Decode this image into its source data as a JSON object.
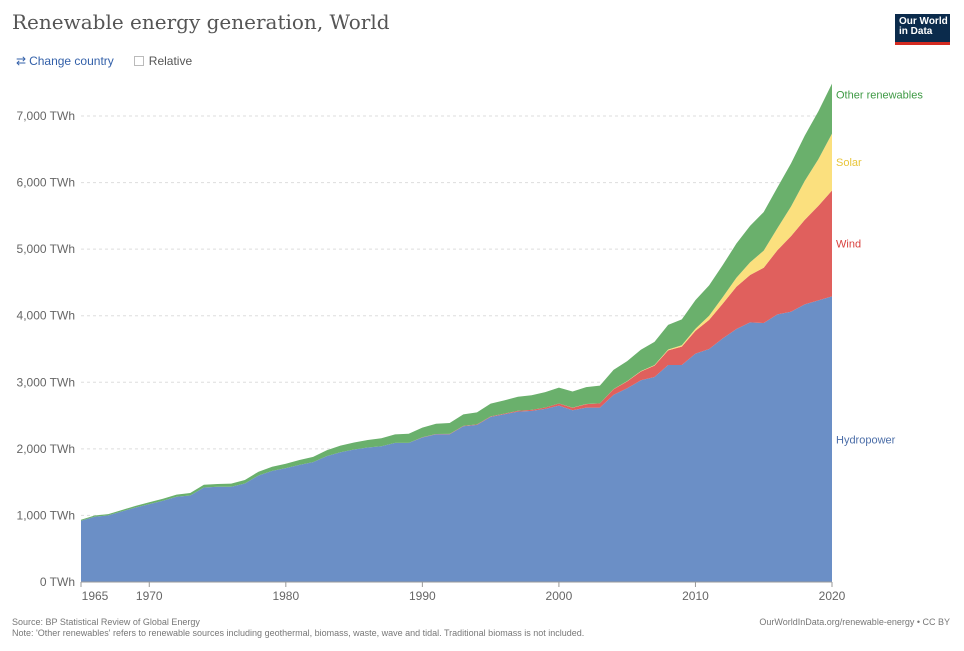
{
  "header": {
    "title": "Renewable energy generation, World",
    "logo_line1": "Our World",
    "logo_line2": "in Data"
  },
  "controls": {
    "change_country_icon": "swap-arrows-icon",
    "change_country_label": "Change country",
    "relative_label": "Relative",
    "relative_checked": false
  },
  "footer": {
    "source": "Source: BP Statistical Review of Global Energy",
    "note": "Note: 'Other renewables' refers to renewable sources including geothermal, biomass, waste, wave and tidal. Traditional biomass is not included.",
    "url": "OurWorldInData.org/renewable-energy • CC BY"
  },
  "colors": {
    "hydropower": "#6b8fc6",
    "wind": "#e0605d",
    "solar": "#fbe07e",
    "other": "#6ab06c",
    "hydropower_label": "#4c6ea8",
    "wind_label": "#d9423f",
    "solar_label": "#e8c53a",
    "other_label": "#3f9a45"
  },
  "chart_data": {
    "type": "area",
    "stacked": true,
    "x": [
      1965,
      1966,
      1967,
      1968,
      1969,
      1970,
      1971,
      1972,
      1973,
      1974,
      1975,
      1976,
      1977,
      1978,
      1979,
      1980,
      1981,
      1982,
      1983,
      1984,
      1985,
      1986,
      1987,
      1988,
      1989,
      1990,
      1991,
      1992,
      1993,
      1994,
      1995,
      1996,
      1997,
      1998,
      1999,
      2000,
      2001,
      2002,
      2003,
      2004,
      2005,
      2006,
      2007,
      2008,
      2009,
      2010,
      2011,
      2012,
      2013,
      2014,
      2015,
      2016,
      2017,
      2018,
      2019,
      2020
    ],
    "series": [
      {
        "name": "Hydropower",
        "values": [
          920,
          980,
          1000,
          1060,
          1120,
          1170,
          1220,
          1280,
          1300,
          1420,
          1430,
          1430,
          1480,
          1600,
          1670,
          1710,
          1760,
          1800,
          1890,
          1950,
          1990,
          2020,
          2040,
          2090,
          2090,
          2170,
          2220,
          2220,
          2340,
          2360,
          2480,
          2520,
          2560,
          2570,
          2600,
          2650,
          2580,
          2620,
          2620,
          2810,
          2910,
          3030,
          3080,
          3260,
          3260,
          3430,
          3500,
          3660,
          3800,
          3900,
          3890,
          4020,
          4060,
          4170,
          4230,
          4290
        ]
      },
      {
        "name": "Wind",
        "values": [
          0,
          0,
          0,
          0,
          0,
          0,
          0,
          0,
          0,
          0,
          0,
          0,
          0,
          0,
          0,
          0,
          0,
          0,
          0,
          0,
          0,
          0,
          0,
          0,
          0,
          4,
          4,
          5,
          6,
          7,
          8,
          9,
          12,
          16,
          22,
          31,
          38,
          52,
          63,
          85,
          104,
          132,
          170,
          220,
          276,
          342,
          437,
          521,
          636,
          712,
          831,
          964,
          1136,
          1270,
          1420,
          1590
        ]
      },
      {
        "name": "Solar",
        "values": [
          0,
          0,
          0,
          0,
          0,
          0,
          0,
          0,
          0,
          0,
          0,
          0,
          0,
          0,
          0,
          0,
          0,
          0,
          0,
          0,
          0,
          0,
          0,
          0,
          0,
          0,
          0,
          0,
          0,
          0,
          0,
          0,
          0,
          0,
          0,
          1,
          1,
          1,
          1,
          2,
          4,
          5,
          7,
          12,
          20,
          32,
          63,
          98,
          134,
          190,
          256,
          330,
          444,
          584,
          700,
          856
        ]
      },
      {
        "name": "Other renewables",
        "values": [
          15,
          18,
          20,
          22,
          24,
          27,
          30,
          33,
          36,
          40,
          43,
          47,
          52,
          57,
          62,
          67,
          72,
          80,
          90,
          98,
          106,
          113,
          119,
          127,
          137,
          145,
          154,
          163,
          172,
          181,
          191,
          200,
          210,
          220,
          230,
          238,
          243,
          255,
          265,
          290,
          300,
          322,
          350,
          370,
          389,
          430,
          456,
          482,
          514,
          547,
          580,
          611,
          648,
          680,
          720,
          750
        ]
      }
    ],
    "series_labels": [
      {
        "text": "Hydropower"
      },
      {
        "text": "Wind"
      },
      {
        "text": "Solar"
      },
      {
        "text": "Other renewables"
      }
    ],
    "y_ticks": [
      {
        "value": 0,
        "label": "0 TWh"
      },
      {
        "value": 1000,
        "label": "1,000 TWh"
      },
      {
        "value": 2000,
        "label": "2,000 TWh"
      },
      {
        "value": 3000,
        "label": "3,000 TWh"
      },
      {
        "value": 4000,
        "label": "4,000 TWh"
      },
      {
        "value": 5000,
        "label": "5,000 TWh"
      },
      {
        "value": 6000,
        "label": "6,000 TWh"
      },
      {
        "value": 7000,
        "label": "7,000 TWh"
      }
    ],
    "x_ticks": [
      {
        "value": 1965,
        "label": "1965"
      },
      {
        "value": 1970,
        "label": "1970"
      },
      {
        "value": 1980,
        "label": "1980"
      },
      {
        "value": 1990,
        "label": "1990"
      },
      {
        "value": 2000,
        "label": "2000"
      },
      {
        "value": 2010,
        "label": "2010"
      },
      {
        "value": 2020,
        "label": "2020"
      }
    ],
    "xlim": [
      1965,
      2020
    ],
    "ylim": [
      0,
      7500
    ],
    "grid": "horizontal dashed",
    "legend": "inline-right"
  }
}
